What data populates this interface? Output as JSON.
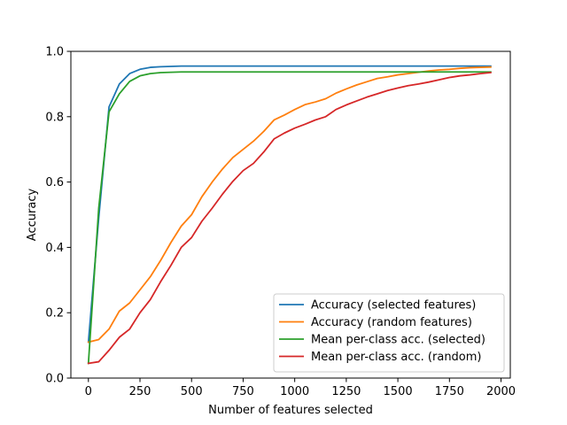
{
  "chart_data": {
    "type": "line",
    "title": "",
    "xlabel": "Number of features selected",
    "ylabel": "Accuracy",
    "xlim": [
      -85,
      2045
    ],
    "ylim": [
      0.0,
      1.0
    ],
    "xticks": [
      0,
      250,
      500,
      750,
      1000,
      1250,
      1500,
      1750,
      2000
    ],
    "yticks": [
      0.0,
      0.2,
      0.4,
      0.6,
      0.8,
      1.0
    ],
    "xtick_labels": [
      "0",
      "250",
      "500",
      "750",
      "1000",
      "1250",
      "1500",
      "1750",
      "2000"
    ],
    "ytick_labels": [
      "0.0",
      "0.2",
      "0.4",
      "0.6",
      "0.8",
      "1.0"
    ],
    "grid": false,
    "legend_position": "bottom-right",
    "series": [
      {
        "name": "Accuracy (selected features)",
        "color": "#1f77b4",
        "x": [
          0,
          50,
          100,
          150,
          200,
          250,
          300,
          350,
          400,
          450,
          500,
          600,
          700,
          800,
          900,
          1000,
          1200,
          1400,
          1600,
          1800,
          1950
        ],
        "y": [
          0.11,
          0.49,
          0.83,
          0.9,
          0.932,
          0.945,
          0.951,
          0.953,
          0.954,
          0.955,
          0.955,
          0.955,
          0.955,
          0.955,
          0.955,
          0.955,
          0.955,
          0.955,
          0.955,
          0.955,
          0.955
        ]
      },
      {
        "name": "Accuracy (random features)",
        "color": "#ff7f0e",
        "x": [
          0,
          50,
          100,
          150,
          200,
          250,
          300,
          350,
          400,
          450,
          500,
          550,
          600,
          650,
          700,
          750,
          800,
          850,
          900,
          950,
          1000,
          1050,
          1100,
          1150,
          1200,
          1250,
          1300,
          1350,
          1400,
          1450,
          1500,
          1550,
          1600,
          1650,
          1700,
          1750,
          1800,
          1850,
          1900,
          1950
        ],
        "y": [
          0.11,
          0.118,
          0.15,
          0.205,
          0.23,
          0.27,
          0.31,
          0.36,
          0.415,
          0.465,
          0.5,
          0.555,
          0.6,
          0.64,
          0.675,
          0.7,
          0.725,
          0.755,
          0.79,
          0.805,
          0.822,
          0.837,
          0.845,
          0.855,
          0.872,
          0.885,
          0.897,
          0.907,
          0.917,
          0.922,
          0.928,
          0.932,
          0.936,
          0.94,
          0.943,
          0.945,
          0.948,
          0.95,
          0.951,
          0.952
        ]
      },
      {
        "name": "Mean per-class acc. (selected)",
        "color": "#2ca02c",
        "x": [
          0,
          50,
          100,
          150,
          200,
          250,
          300,
          350,
          400,
          450,
          500,
          600,
          700,
          800,
          900,
          1000,
          1200,
          1400,
          1600,
          1800,
          1950
        ],
        "y": [
          0.045,
          0.52,
          0.815,
          0.87,
          0.908,
          0.925,
          0.932,
          0.935,
          0.936,
          0.937,
          0.937,
          0.937,
          0.937,
          0.937,
          0.937,
          0.937,
          0.937,
          0.937,
          0.937,
          0.937,
          0.937
        ]
      },
      {
        "name": "Mean per-class acc. (random)",
        "color": "#d62728",
        "x": [
          0,
          50,
          100,
          150,
          200,
          250,
          300,
          350,
          400,
          450,
          500,
          550,
          600,
          650,
          700,
          750,
          800,
          850,
          900,
          950,
          1000,
          1050,
          1100,
          1150,
          1200,
          1250,
          1300,
          1350,
          1400,
          1450,
          1500,
          1550,
          1600,
          1650,
          1700,
          1750,
          1800,
          1850,
          1900,
          1950
        ],
        "y": [
          0.045,
          0.05,
          0.085,
          0.125,
          0.15,
          0.2,
          0.24,
          0.295,
          0.345,
          0.4,
          0.43,
          0.48,
          0.52,
          0.563,
          0.602,
          0.635,
          0.657,
          0.692,
          0.732,
          0.75,
          0.765,
          0.777,
          0.79,
          0.8,
          0.822,
          0.836,
          0.848,
          0.86,
          0.87,
          0.88,
          0.888,
          0.895,
          0.9,
          0.906,
          0.913,
          0.92,
          0.925,
          0.928,
          0.932,
          0.935
        ]
      }
    ]
  }
}
